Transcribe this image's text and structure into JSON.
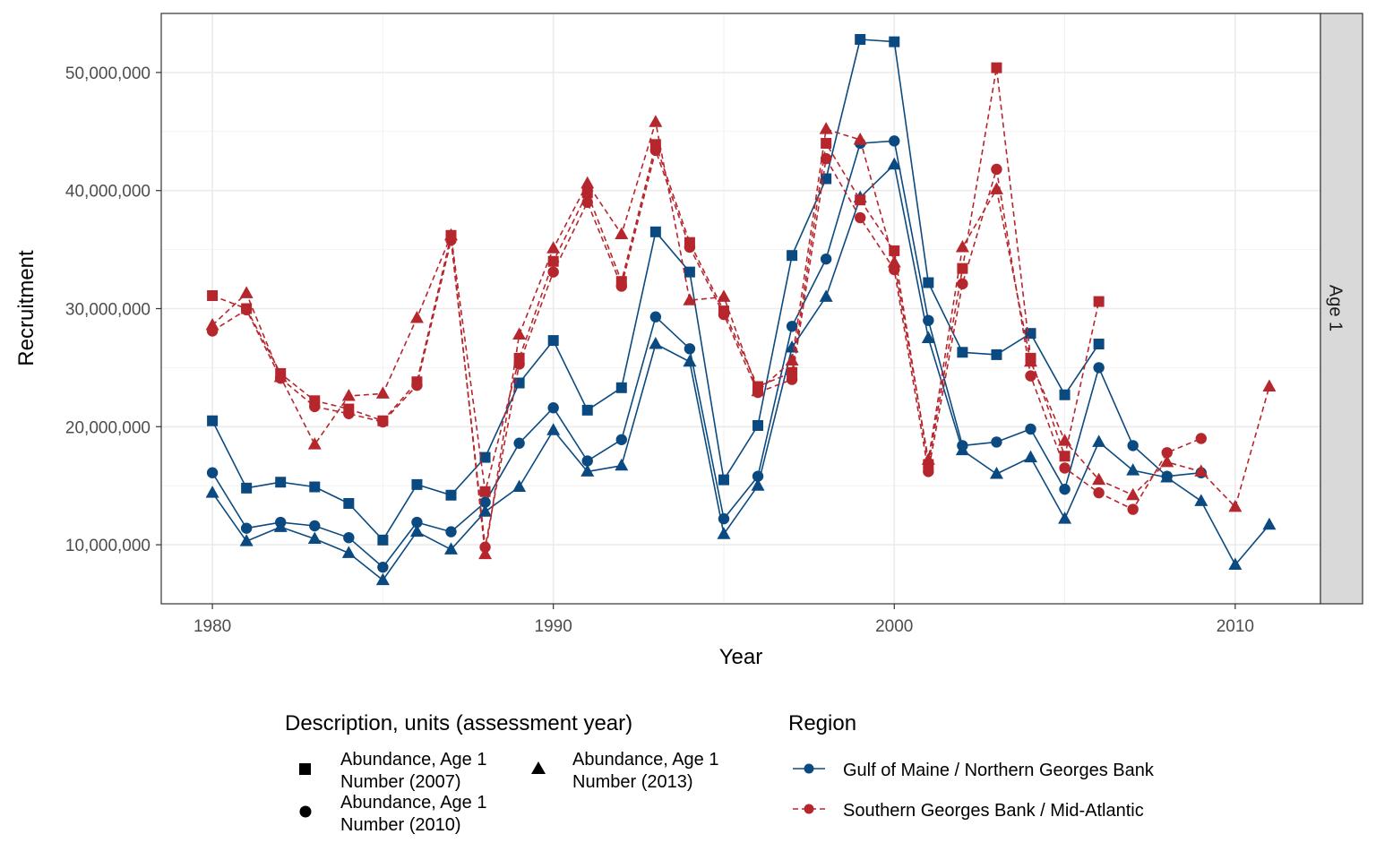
{
  "chart_data": {
    "type": "line",
    "xlabel": "Year",
    "ylabel": "Recruitment",
    "facet_label": "Age 1",
    "xlim": [
      1978.5,
      2012.5
    ],
    "ylim": [
      5000000,
      55000000
    ],
    "x_ticks": [
      1980,
      1990,
      2000,
      2010
    ],
    "x_tick_labels": [
      "1980",
      "1990",
      "2000",
      "2010"
    ],
    "y_ticks": [
      10000000,
      20000000,
      30000000,
      40000000,
      50000000
    ],
    "y_tick_labels": [
      "10,000,000",
      "20,000,000",
      "30,000,000",
      "40,000,000",
      "50,000,000"
    ],
    "grid": true,
    "legend_description": {
      "title": "Description, units (assessment year)",
      "items": [
        {
          "shape": "square",
          "line1": "Abundance, Age 1",
          "line2": "Number (2007)"
        },
        {
          "shape": "circle",
          "line1": "Abundance, Age 1",
          "line2": "Number (2010)"
        },
        {
          "shape": "triangle",
          "line1": "Abundance, Age 1",
          "line2": "Number (2013)"
        }
      ]
    },
    "legend_region": {
      "title": "Region",
      "items": [
        {
          "label": "Gulf of Maine / Northern Georges Bank",
          "color": "#0b4a80",
          "dash": "solid"
        },
        {
          "label": "Southern Georges Bank / Mid-Atlantic",
          "color": "#b5262d",
          "dash": "dashed"
        }
      ]
    },
    "series": [
      {
        "region": 0,
        "shape": "square",
        "x": [
          1980,
          1981,
          1982,
          1983,
          1984,
          1985,
          1986,
          1987,
          1988,
          1989,
          1990,
          1991,
          1992,
          1993,
          1994,
          1995,
          1996,
          1997,
          1998,
          1999,
          2000,
          2001,
          2002,
          2003,
          2004,
          2005,
          2006
        ],
        "y": [
          20500000,
          14800000,
          15300000,
          14900000,
          13500000,
          10400000,
          15100000,
          14200000,
          17400000,
          23700000,
          27300000,
          21400000,
          23300000,
          36500000,
          33100000,
          15500000,
          20100000,
          34500000,
          41000000,
          52800000,
          52600000,
          32200000,
          26300000,
          26100000,
          27900000,
          22700000,
          27000000
        ]
      },
      {
        "region": 0,
        "shape": "circle",
        "x": [
          1980,
          1981,
          1982,
          1983,
          1984,
          1985,
          1986,
          1987,
          1988,
          1989,
          1990,
          1991,
          1992,
          1993,
          1994,
          1995,
          1996,
          1997,
          1998,
          1999,
          2000,
          2001,
          2002,
          2003,
          2004,
          2005,
          2006,
          2007,
          2008,
          2009
        ],
        "y": [
          16100000,
          11400000,
          11900000,
          11600000,
          10600000,
          8100000,
          11900000,
          11100000,
          13600000,
          18600000,
          21600000,
          17100000,
          18900000,
          29300000,
          26600000,
          12200000,
          15800000,
          28500000,
          34200000,
          44000000,
          44200000,
          29000000,
          18400000,
          18700000,
          19800000,
          14700000,
          25000000,
          18400000,
          15800000,
          16100000
        ]
      },
      {
        "region": 0,
        "shape": "triangle",
        "x": [
          1980,
          1981,
          1982,
          1983,
          1984,
          1985,
          1986,
          1987,
          1988,
          1989,
          1990,
          1991,
          1992,
          1993,
          1994,
          1995,
          1996,
          1997,
          1998,
          1999,
          2000,
          2001,
          2002,
          2003,
          2004,
          2005,
          2006,
          2007,
          2008,
          2009,
          2010,
          2011
        ],
        "y": [
          14400000,
          10300000,
          11500000,
          10500000,
          9300000,
          7000000,
          11100000,
          9600000,
          12800000,
          14900000,
          19700000,
          16200000,
          16700000,
          27000000,
          25500000,
          10900000,
          15000000,
          26700000,
          31000000,
          39400000,
          42200000,
          27500000,
          18000000,
          16000000,
          17400000,
          12200000,
          18700000,
          16300000,
          15700000,
          13700000,
          8300000,
          11700000
        ]
      },
      {
        "region": 1,
        "shape": "square",
        "x": [
          1980,
          1981,
          1982,
          1983,
          1984,
          1985,
          1986,
          1987,
          1988,
          1989,
          1990,
          1991,
          1992,
          1993,
          1994,
          1995,
          1996,
          1997,
          1998,
          1999,
          2000,
          2001,
          2002,
          2003,
          2004,
          2005,
          2006
        ],
        "y": [
          31100000,
          30000000,
          24500000,
          22200000,
          21500000,
          20500000,
          23800000,
          36200000,
          14500000,
          25800000,
          34000000,
          39800000,
          32300000,
          43900000,
          35600000,
          29800000,
          23400000,
          24600000,
          44000000,
          39200000,
          34900000,
          16800000,
          33400000,
          50400000,
          25800000,
          17500000,
          30600000
        ]
      },
      {
        "region": 1,
        "shape": "circle",
        "x": [
          1980,
          1981,
          1982,
          1983,
          1984,
          1985,
          1986,
          1987,
          1988,
          1989,
          1990,
          1991,
          1992,
          1993,
          1994,
          1995,
          1996,
          1997,
          1998,
          1999,
          2000,
          2001,
          2002,
          2003,
          2004,
          2005,
          2006,
          2007,
          2008,
          2009
        ],
        "y": [
          28100000,
          29900000,
          24100000,
          21700000,
          21100000,
          20400000,
          23500000,
          35800000,
          9800000,
          25300000,
          33100000,
          39000000,
          31900000,
          43400000,
          35200000,
          29500000,
          22900000,
          24000000,
          42700000,
          37700000,
          33300000,
          16200000,
          32100000,
          41800000,
          24300000,
          16500000,
          14400000,
          13000000,
          17800000,
          19000000
        ]
      },
      {
        "region": 1,
        "shape": "triangle",
        "x": [
          1980,
          1981,
          1982,
          1983,
          1984,
          1985,
          1986,
          1987,
          1988,
          1989,
          1990,
          1991,
          1992,
          1993,
          1994,
          1995,
          1996,
          1997,
          1998,
          1999,
          2000,
          2001,
          2002,
          2003,
          2004,
          2005,
          2006,
          2007,
          2008,
          2009,
          2010,
          2011
        ],
        "y": [
          28600000,
          31300000,
          24200000,
          18500000,
          22600000,
          22800000,
          29200000,
          36200000,
          9200000,
          27800000,
          35100000,
          40600000,
          36300000,
          45800000,
          30700000,
          31000000,
          23000000,
          25600000,
          45200000,
          44300000,
          33900000,
          17200000,
          35200000,
          40100000,
          25500000,
          18800000,
          15500000,
          14200000,
          17000000,
          16200000,
          13200000,
          23400000
        ]
      }
    ]
  }
}
